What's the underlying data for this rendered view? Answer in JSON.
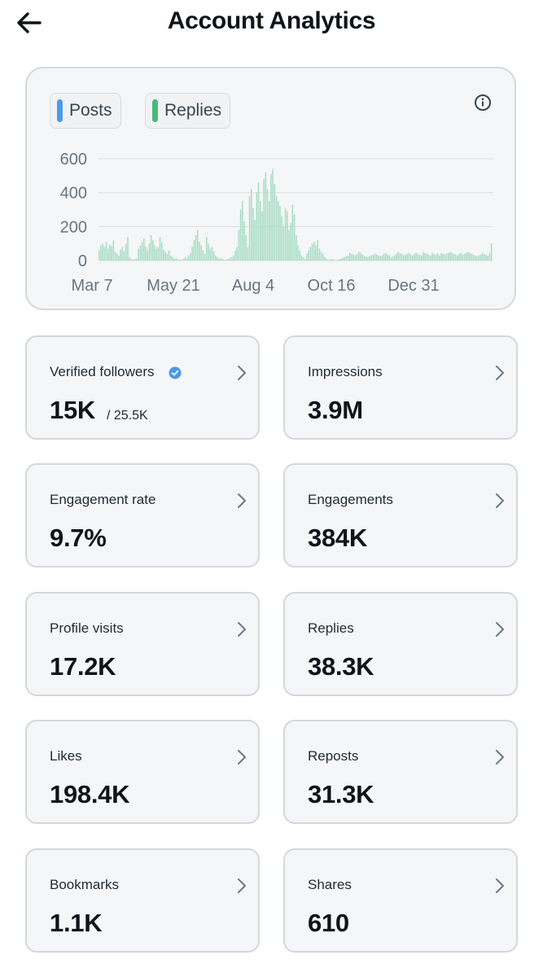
{
  "header": {
    "title": "Account Analytics"
  },
  "legend": {
    "posts": {
      "label": "Posts",
      "color": "#4c9be8"
    },
    "replies": {
      "label": "Replies",
      "color": "#4cb87a"
    }
  },
  "chart_data": {
    "type": "bar",
    "ylim": [
      0,
      600
    ],
    "yticks": [
      "0",
      "200",
      "400",
      "600"
    ],
    "xticks": [
      "Mar 7",
      "May 21",
      "Aug 4",
      "Oct 16",
      "Dec 31"
    ],
    "grid": true,
    "bar_color": "#a8dcc4",
    "series": [
      {
        "name": "Replies",
        "values": [
          60,
          90,
          100,
          80,
          110,
          70,
          95,
          85,
          120,
          50,
          40,
          30,
          65,
          80,
          55,
          100,
          140,
          20,
          10,
          5,
          8,
          12,
          70,
          90,
          110,
          130,
          85,
          60,
          100,
          150,
          120,
          90,
          70,
          80,
          140,
          110,
          65,
          50,
          40,
          60,
          30,
          20,
          10,
          15,
          8,
          5,
          3,
          10,
          20,
          15,
          30,
          45,
          80,
          120,
          150,
          180,
          110,
          90,
          60,
          40,
          140,
          100,
          70,
          80,
          55,
          30,
          20,
          10,
          15,
          8,
          5,
          5,
          10,
          15,
          20,
          30,
          60,
          80,
          180,
          300,
          350,
          230,
          150,
          80,
          380,
          420,
          310,
          240,
          400,
          460,
          350,
          290,
          480,
          520,
          420,
          350,
          510,
          540,
          450,
          380,
          350,
          320,
          260,
          200,
          310,
          290,
          180,
          220,
          330,
          270,
          150,
          90,
          60,
          30,
          20,
          10,
          40,
          60,
          80,
          100,
          110,
          90,
          120,
          70,
          50,
          40,
          20,
          10,
          5,
          8,
          10,
          5,
          3,
          5,
          8,
          10,
          15,
          20,
          25,
          30,
          45,
          40,
          35,
          30,
          40,
          50,
          45,
          35,
          30,
          25,
          20,
          25,
          30,
          35,
          40,
          35,
          30,
          25,
          30,
          40,
          45,
          35,
          30,
          20,
          25,
          30,
          40,
          50,
          45,
          40,
          30,
          35,
          40,
          45,
          35,
          30,
          40,
          45,
          40,
          35,
          30,
          50,
          45,
          40,
          35,
          30,
          45,
          40,
          35,
          40,
          30,
          45,
          40,
          35,
          40,
          45,
          50,
          45,
          40,
          35,
          30,
          40,
          45,
          35,
          40,
          45,
          50,
          45,
          40,
          35,
          30,
          25,
          30,
          35,
          45,
          40,
          35,
          30,
          40,
          100
        ]
      }
    ]
  },
  "stats": [
    {
      "label": "Verified followers",
      "value": "15K",
      "sub": "/ 25.5K"
    },
    {
      "label": "Impressions",
      "value": "3.9M"
    },
    {
      "label": "Engagement rate",
      "value": "9.7%"
    },
    {
      "label": "Engagements",
      "value": "384K"
    },
    {
      "label": "Profile visits",
      "value": "17.2K"
    },
    {
      "label": "Replies",
      "value": "38.3K"
    },
    {
      "label": "Likes",
      "value": "198.4K"
    },
    {
      "label": "Reposts",
      "value": "31.3K"
    },
    {
      "label": "Bookmarks",
      "value": "1.1K"
    },
    {
      "label": "Shares",
      "value": "610"
    }
  ],
  "icons": {
    "back": "arrow-left-icon",
    "info": "info-icon",
    "verified": "verified-badge-icon",
    "chevron": "chevron-right-icon"
  },
  "colors": {
    "verified": "#4a99e9",
    "card_bg": "#f5f6f7",
    "card_border": "#d3d8dc"
  }
}
